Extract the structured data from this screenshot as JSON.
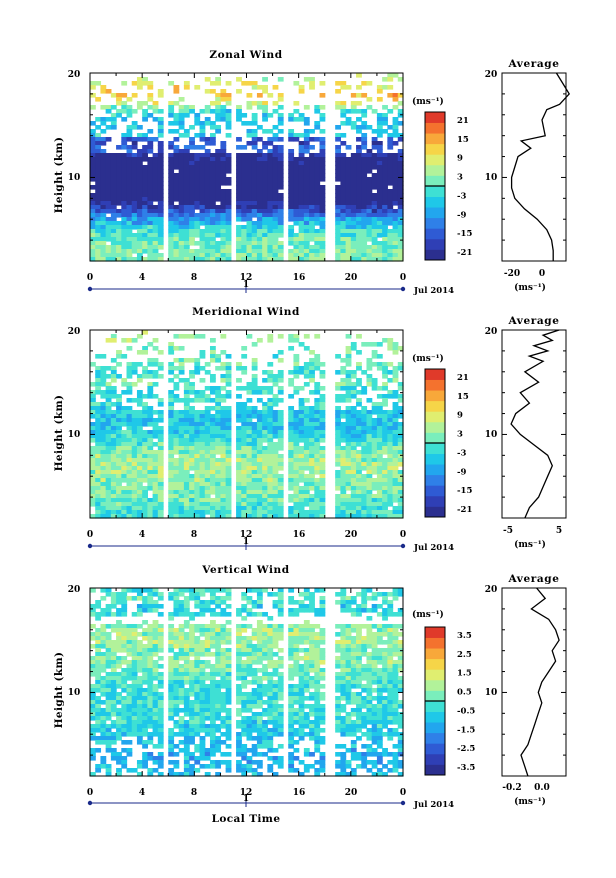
{
  "time_axis_label": "Local Time",
  "panels": [
    {
      "title": "Zonal Wind",
      "ylabel": "Height (km)",
      "x_ticks": [
        "0",
        "4",
        "8",
        "12",
        "16",
        "20",
        "0"
      ],
      "y_ticks": [
        "20",
        "10"
      ],
      "day_label": "1",
      "date_label": "Jul 2014",
      "cbar_unit": "(ms⁻¹)",
      "cbar_ticks": [
        "21",
        "15",
        "9",
        "3",
        "-3",
        "-9",
        "-15",
        "-21"
      ],
      "avg_title": "Average",
      "avg_xticks": [
        "-20",
        "0"
      ],
      "avg_unit": "(ms⁻¹)"
    },
    {
      "title": "Meridional Wind",
      "ylabel": "Height (km)",
      "x_ticks": [
        "0",
        "4",
        "8",
        "12",
        "16",
        "20",
        "0"
      ],
      "y_ticks": [
        "20",
        "10"
      ],
      "day_label": "1",
      "date_label": "Jul 2014",
      "cbar_unit": "(ms⁻¹)",
      "cbar_ticks": [
        "21",
        "15",
        "9",
        "3",
        "-3",
        "-9",
        "-15",
        "-21"
      ],
      "avg_title": "Average",
      "avg_xticks": [
        "-5",
        "5"
      ],
      "avg_unit": "(ms⁻¹)"
    },
    {
      "title": "Vertical Wind",
      "ylabel": "Height (km)",
      "x_ticks": [
        "0",
        "4",
        "8",
        "12",
        "16",
        "20",
        "0"
      ],
      "y_ticks": [
        "20",
        "10"
      ],
      "day_label": "1",
      "date_label": "Jul 2014",
      "cbar_unit": "(ms⁻¹)",
      "cbar_ticks": [
        "3.5",
        "2.5",
        "1.5",
        "0.5",
        "-0.5",
        "-1.5",
        "-2.5",
        "-3.5"
      ],
      "avg_title": "Average",
      "avg_xticks": [
        "-0.2",
        "0.0"
      ],
      "avg_unit": "(ms⁻¹)"
    }
  ],
  "colormap": [
    "#2b2f8f",
    "#2f3fb5",
    "#2f5bd4",
    "#2f80e8",
    "#22a6ee",
    "#1fc8e8",
    "#3ee0d4",
    "#7aeebc",
    "#b2f29a",
    "#e0ee70",
    "#f6d548",
    "#f8a83a",
    "#f4722e",
    "#e03a2a"
  ],
  "chart_data": [
    {
      "type": "heatmap",
      "title": "Zonal Wind",
      "x_range_hours": [
        0,
        24
      ],
      "y_range_km": [
        2,
        20
      ],
      "xlabel": "Local Time",
      "ylabel": "Height (km)",
      "colorbar_range": [
        -21,
        21
      ],
      "colorbar_unit": "ms-1",
      "data_gaps_hours": [
        [
          5.5,
          5.9
        ],
        [
          11.0,
          11.3
        ],
        [
          15.0,
          15.4
        ],
        [
          18.0,
          18.3
        ],
        [
          18.6,
          18.9
        ]
      ],
      "mean_profile_by_height": [
        {
          "km": 20,
          "v": 4
        },
        {
          "km": 19,
          "v": 8
        },
        {
          "km": 18,
          "v": 12
        },
        {
          "km": 17,
          "v": 6
        },
        {
          "km": 16.5,
          "v": -2
        },
        {
          "km": 15.5,
          "v": -5
        },
        {
          "km": 14,
          "v": -3
        },
        {
          "km": 13.5,
          "v": -18
        },
        {
          "km": 12.8,
          "v": -12
        },
        {
          "km": 12,
          "v": -20
        },
        {
          "km": 11,
          "v": -22
        },
        {
          "km": 10,
          "v": -24
        },
        {
          "km": 9,
          "v": -24
        },
        {
          "km": 8,
          "v": -22
        },
        {
          "km": 7,
          "v": -16
        },
        {
          "km": 6,
          "v": -8
        },
        {
          "km": 5,
          "v": -2
        },
        {
          "km": 4,
          "v": 1
        },
        {
          "km": 3,
          "v": 2
        },
        {
          "km": 2,
          "v": 2
        }
      ],
      "avg_x_range": [
        -30,
        10
      ]
    },
    {
      "type": "heatmap",
      "title": "Meridional Wind",
      "x_range_hours": [
        0,
        24
      ],
      "y_range_km": [
        2,
        20
      ],
      "xlabel": "Local Time",
      "ylabel": "Height (km)",
      "colorbar_range": [
        -21,
        21
      ],
      "colorbar_unit": "ms-1",
      "data_gaps_hours": [
        [
          5.5,
          5.9
        ],
        [
          11.0,
          11.3
        ],
        [
          15.0,
          15.4
        ],
        [
          18.0,
          18.3
        ],
        [
          18.6,
          18.9
        ]
      ],
      "mean_profile_by_height": [
        {
          "km": 20,
          "v": 5.5
        },
        {
          "km": 19.5,
          "v": 2
        },
        {
          "km": 19,
          "v": 4
        },
        {
          "km": 18.5,
          "v": 0
        },
        {
          "km": 18,
          "v": 3
        },
        {
          "km": 17.5,
          "v": -1
        },
        {
          "km": 17,
          "v": 2
        },
        {
          "km": 16,
          "v": -2
        },
        {
          "km": 15,
          "v": 1
        },
        {
          "km": 14,
          "v": -3
        },
        {
          "km": 13,
          "v": -1
        },
        {
          "km": 12,
          "v": -4
        },
        {
          "km": 11,
          "v": -5
        },
        {
          "km": 10,
          "v": -3
        },
        {
          "km": 9,
          "v": 0
        },
        {
          "km": 8,
          "v": 3
        },
        {
          "km": 7,
          "v": 4
        },
        {
          "km": 6,
          "v": 3
        },
        {
          "km": 5,
          "v": 2
        },
        {
          "km": 4,
          "v": 1
        },
        {
          "km": 3,
          "v": -1
        },
        {
          "km": 2,
          "v": -2
        }
      ],
      "avg_x_range": [
        -7,
        7
      ]
    },
    {
      "type": "heatmap",
      "title": "Vertical Wind",
      "x_range_hours": [
        0,
        24
      ],
      "y_range_km": [
        2,
        20
      ],
      "xlabel": "Local Time",
      "ylabel": "Height (km)",
      "colorbar_range": [
        -3.5,
        3.5
      ],
      "colorbar_unit": "ms-1",
      "data_gaps_hours": [
        [
          5.5,
          5.9
        ],
        [
          11.0,
          11.3
        ],
        [
          15.0,
          15.2
        ],
        [
          18.0,
          18.3
        ],
        [
          18.6,
          18.9
        ]
      ],
      "mean_profile_by_height": [
        {
          "km": 20,
          "v": -0.05
        },
        {
          "km": 19,
          "v": 0.0
        },
        {
          "km": 18,
          "v": -0.08
        },
        {
          "km": 17,
          "v": 0.02
        },
        {
          "km": 16,
          "v": 0.06
        },
        {
          "km": 15,
          "v": 0.08
        },
        {
          "km": 14,
          "v": 0.04
        },
        {
          "km": 13,
          "v": 0.06
        },
        {
          "km": 12,
          "v": 0.02
        },
        {
          "km": 11,
          "v": -0.02
        },
        {
          "km": 10,
          "v": -0.04
        },
        {
          "km": 9,
          "v": -0.02
        },
        {
          "km": 8,
          "v": -0.04
        },
        {
          "km": 7,
          "v": -0.06
        },
        {
          "km": 6,
          "v": -0.08
        },
        {
          "km": 5,
          "v": -0.1
        },
        {
          "km": 4,
          "v": -0.14
        },
        {
          "km": 3,
          "v": -0.12
        },
        {
          "km": 2,
          "v": -0.1
        }
      ],
      "avg_x_range": [
        -0.25,
        0.12
      ]
    }
  ]
}
